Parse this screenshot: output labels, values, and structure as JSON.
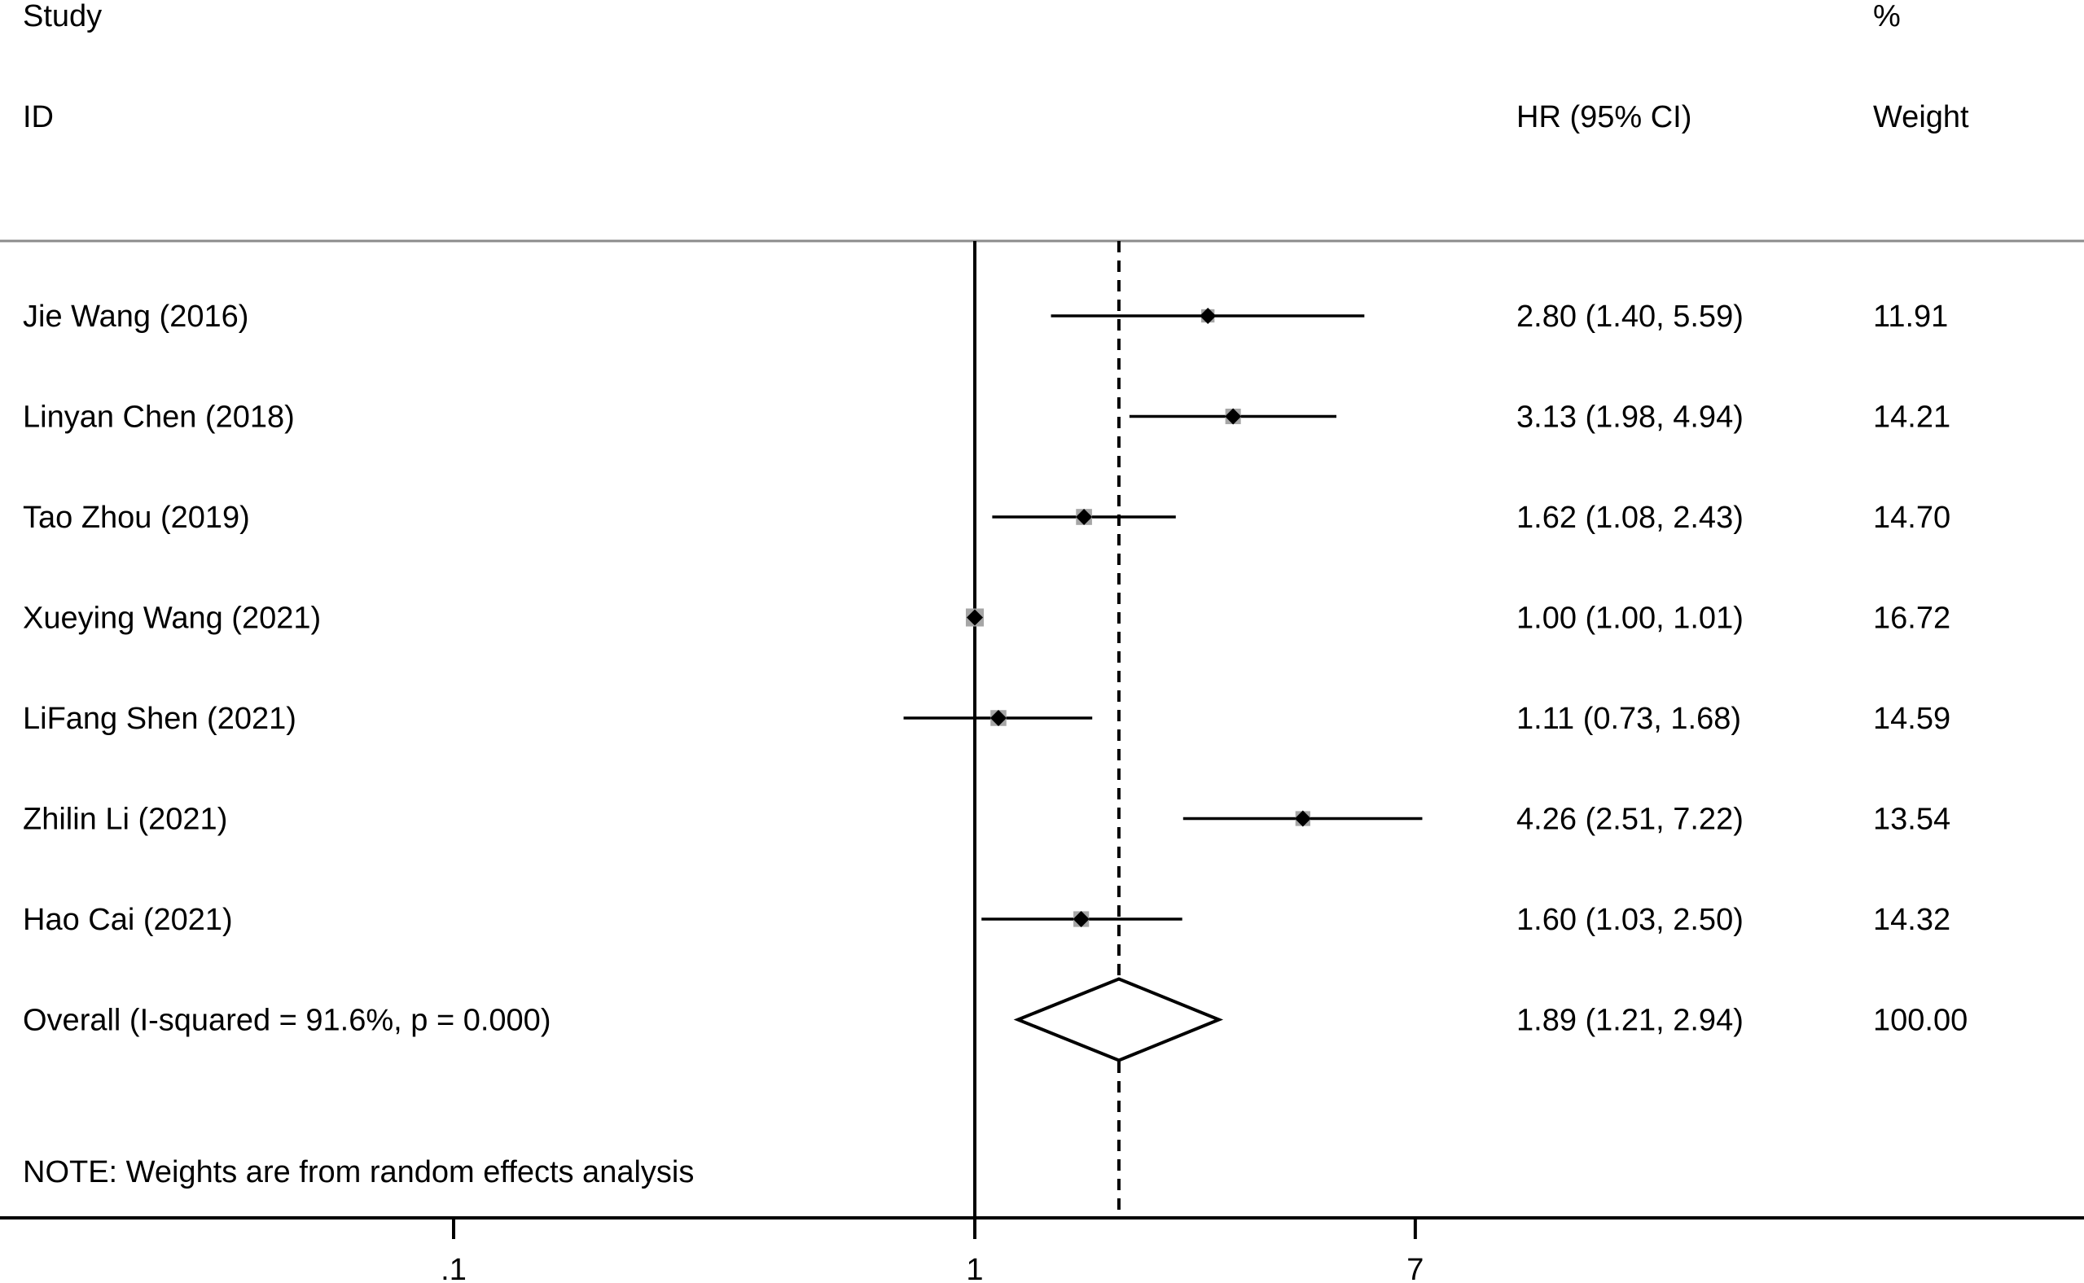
{
  "headers": {
    "study_line1": "Study",
    "study_line2": "ID",
    "hr": "HR (95% CI)",
    "weight_line1": "%",
    "weight_line2": "Weight"
  },
  "note": "NOTE: Weights are from random effects analysis",
  "chart_data": {
    "type": "forest",
    "x_scale": "log",
    "reference_line": 1,
    "overall_line": 1.89,
    "x_ticks": [
      {
        "value": 0.1,
        "label": ".1"
      },
      {
        "value": 1,
        "label": "1"
      },
      {
        "value": 7,
        "label": "7"
      }
    ],
    "studies": [
      {
        "label": "Jie Wang (2016)",
        "hr": 2.8,
        "lo": 1.4,
        "hi": 5.59,
        "ci_text": "2.80 (1.40, 5.59)",
        "weight": "11.91"
      },
      {
        "label": "Linyan Chen (2018)",
        "hr": 3.13,
        "lo": 1.98,
        "hi": 4.94,
        "ci_text": "3.13 (1.98, 4.94)",
        "weight": "14.21"
      },
      {
        "label": "Tao Zhou (2019)",
        "hr": 1.62,
        "lo": 1.08,
        "hi": 2.43,
        "ci_text": "1.62 (1.08, 2.43)",
        "weight": "14.70"
      },
      {
        "label": "Xueying Wang (2021)",
        "hr": 1.0,
        "lo": 1.0,
        "hi": 1.01,
        "ci_text": "1.00 (1.00, 1.01)",
        "weight": "16.72"
      },
      {
        "label": "LiFang Shen (2021)",
        "hr": 1.11,
        "lo": 0.73,
        "hi": 1.68,
        "ci_text": "1.11 (0.73, 1.68)",
        "weight": "14.59"
      },
      {
        "label": "Zhilin Li (2021)",
        "hr": 4.26,
        "lo": 2.51,
        "hi": 7.22,
        "ci_text": "4.26 (2.51, 7.22)",
        "weight": "13.54"
      },
      {
        "label": "Hao Cai (2021)",
        "hr": 1.6,
        "lo": 1.03,
        "hi": 2.5,
        "ci_text": "1.60 (1.03, 2.50)",
        "weight": "14.32"
      }
    ],
    "overall": {
      "label": "Overall  (I-squared = 91.6%, p = 0.000)",
      "hr": 1.89,
      "lo": 1.21,
      "hi": 2.94,
      "ci_text": "1.89 (1.21, 2.94)",
      "weight": "100.00"
    }
  }
}
